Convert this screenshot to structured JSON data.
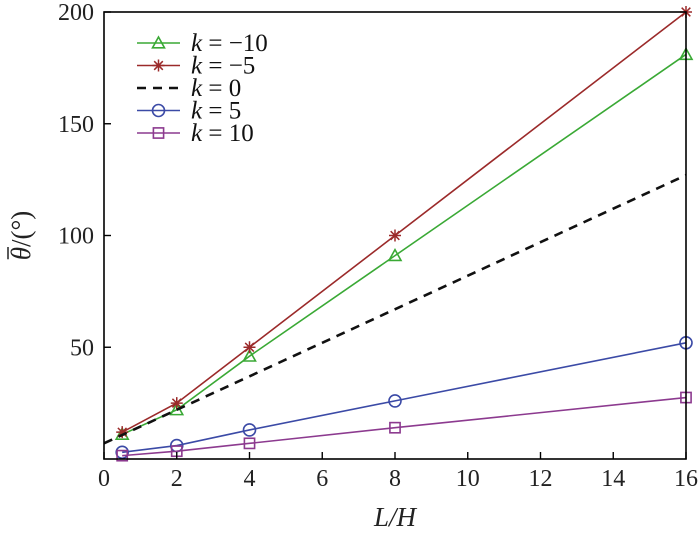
{
  "chart_data": {
    "type": "line",
    "xlabel": "L/H",
    "ylabel_symbol": "θ",
    "ylabel_suffix": "/(°)",
    "xlim": [
      0,
      16
    ],
    "ylim": [
      0,
      200
    ],
    "xticks": [
      0,
      2,
      4,
      6,
      8,
      10,
      12,
      14,
      16
    ],
    "yticks": [
      50,
      100,
      150,
      200
    ],
    "grid": false,
    "legend_position": "top-left",
    "series": [
      {
        "name": "k = −10",
        "k_var": "k",
        "k_value": "= −10",
        "color": "#3aa935",
        "marker": "triangle",
        "dash": false,
        "x": [
          0.5,
          2,
          4,
          8,
          16
        ],
        "y": [
          11,
          22,
          46,
          91,
          181
        ]
      },
      {
        "name": "k = −5",
        "k_var": "k",
        "k_value": "= −5",
        "color": "#9b2a2a",
        "marker": "asterisk",
        "dash": false,
        "x": [
          0.5,
          2,
          4,
          8,
          16
        ],
        "y": [
          12,
          25,
          50,
          100,
          200
        ]
      },
      {
        "name": "k = 0",
        "k_var": "k",
        "k_value": "= 0",
        "color": "#111111",
        "marker": "none",
        "dash": true,
        "x": [
          0,
          16
        ],
        "y": [
          7,
          127
        ]
      },
      {
        "name": "k = 5",
        "k_var": "k",
        "k_value": "= 5",
        "color": "#3b4aa6",
        "marker": "circle",
        "dash": false,
        "x": [
          0.5,
          2,
          4,
          8,
          16
        ],
        "y": [
          3,
          6,
          13,
          26,
          52
        ]
      },
      {
        "name": "k = 10",
        "k_var": "k",
        "k_value": "= 10",
        "color": "#8c3a8f",
        "marker": "square",
        "dash": false,
        "x": [
          0.5,
          2,
          4,
          8,
          16
        ],
        "y": [
          1.5,
          3.5,
          7,
          14,
          27.5
        ]
      }
    ]
  }
}
